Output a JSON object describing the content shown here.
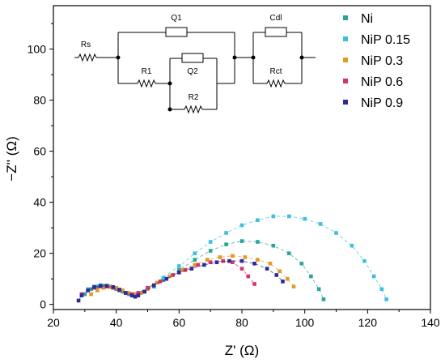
{
  "chart_data": {
    "type": "scatter",
    "title": "",
    "xlabel": "Z' (Ω)",
    "ylabel": "−Z'' (Ω)",
    "xlim": [
      20,
      140
    ],
    "ylim": [
      -2,
      117
    ],
    "xticks": [
      20,
      40,
      60,
      80,
      100,
      120,
      140
    ],
    "yticks": [
      0,
      20,
      40,
      60,
      80,
      100
    ],
    "grid": false,
    "legend_position": "top-right",
    "series": [
      {
        "name": "Ni",
        "color": "#2aa59a",
        "points": [
          [
            30,
            4
          ],
          [
            32,
            6
          ],
          [
            34,
            7
          ],
          [
            36,
            7.3
          ],
          [
            38,
            7
          ],
          [
            40,
            6
          ],
          [
            42,
            5
          ],
          [
            44,
            4
          ],
          [
            45.5,
            3.6
          ],
          [
            47,
            4
          ],
          [
            49,
            5
          ],
          [
            52,
            7
          ],
          [
            55,
            9.5
          ],
          [
            60,
            13.5
          ],
          [
            65,
            17.5
          ],
          [
            70,
            21
          ],
          [
            75,
            23.5
          ],
          [
            80,
            24.8
          ],
          [
            85,
            24.5
          ],
          [
            90,
            23
          ],
          [
            95,
            20
          ],
          [
            99,
            16
          ],
          [
            102,
            11
          ],
          [
            104.5,
            6
          ],
          [
            106,
            2
          ]
        ]
      },
      {
        "name": "NiP 0.15",
        "color": "#3cc0de",
        "points": [
          [
            29,
            4
          ],
          [
            31,
            6
          ],
          [
            33,
            7
          ],
          [
            35,
            7.5
          ],
          [
            37,
            7.3
          ],
          [
            39,
            6.5
          ],
          [
            41,
            5.5
          ],
          [
            43,
            4.5
          ],
          [
            45,
            4
          ],
          [
            47,
            4.5
          ],
          [
            50,
            6.5
          ],
          [
            55,
            10.5
          ],
          [
            60,
            15
          ],
          [
            65,
            20
          ],
          [
            70,
            24.5
          ],
          [
            75,
            28
          ],
          [
            80,
            31
          ],
          [
            85,
            33
          ],
          [
            90,
            34.5
          ],
          [
            95,
            34.5
          ],
          [
            100,
            33.5
          ],
          [
            105,
            31.5
          ],
          [
            110,
            28
          ],
          [
            115,
            23
          ],
          [
            119,
            17
          ],
          [
            122,
            11
          ],
          [
            124.5,
            6
          ],
          [
            126,
            2
          ]
        ]
      },
      {
        "name": "NiP 0.3",
        "color": "#e09a25",
        "points": [
          [
            32,
            4
          ],
          [
            34,
            5.5
          ],
          [
            36,
            6.5
          ],
          [
            38,
            6.8
          ],
          [
            40,
            6.5
          ],
          [
            42,
            5.5
          ],
          [
            44,
            4.5
          ],
          [
            46,
            4
          ],
          [
            48,
            4.5
          ],
          [
            50,
            6
          ],
          [
            53,
            8.5
          ],
          [
            57,
            11
          ],
          [
            61,
            13.5
          ],
          [
            65,
            15.5
          ],
          [
            69,
            17.5
          ],
          [
            73,
            18.5
          ],
          [
            77,
            19
          ],
          [
            81,
            18.5
          ],
          [
            85,
            17.5
          ],
          [
            89,
            16
          ],
          [
            92,
            13
          ],
          [
            94.5,
            10
          ],
          [
            96.5,
            7
          ]
        ]
      },
      {
        "name": "NiP 0.6",
        "color": "#d6336a",
        "points": [
          [
            29,
            4
          ],
          [
            31,
            5.5
          ],
          [
            33,
            6.5
          ],
          [
            35,
            7
          ],
          [
            37,
            7
          ],
          [
            39,
            6.5
          ],
          [
            41,
            5.5
          ],
          [
            43,
            4.5
          ],
          [
            45,
            4
          ],
          [
            47,
            4.5
          ],
          [
            50,
            6.5
          ],
          [
            54,
            9
          ],
          [
            58,
            11.5
          ],
          [
            62,
            13.5
          ],
          [
            66,
            15.5
          ],
          [
            70,
            16.5
          ],
          [
            74,
            17
          ],
          [
            77,
            16.5
          ],
          [
            80,
            14
          ],
          [
            82,
            11
          ],
          [
            84,
            8
          ]
        ]
      },
      {
        "name": "NiP 0.9",
        "color": "#2b2b9a",
        "points": [
          [
            28,
            1.5
          ],
          [
            29,
            3.5
          ],
          [
            31,
            5.5
          ],
          [
            33,
            6.8
          ],
          [
            35,
            7.3
          ],
          [
            37,
            7.3
          ],
          [
            39,
            6.8
          ],
          [
            41,
            5.8
          ],
          [
            43,
            4.5
          ],
          [
            45,
            3.5
          ],
          [
            46,
            3
          ],
          [
            47,
            3.5
          ],
          [
            49,
            5
          ],
          [
            52,
            7.5
          ],
          [
            56,
            10
          ],
          [
            60,
            12.5
          ],
          [
            64,
            14
          ],
          [
            68,
            15.5
          ],
          [
            72,
            16.5
          ],
          [
            76,
            17
          ],
          [
            80,
            17
          ],
          [
            84,
            16
          ],
          [
            88,
            14
          ],
          [
            91,
            11.5
          ],
          [
            93,
            9
          ]
        ]
      }
    ]
  },
  "circuit": {
    "labels": {
      "rs": "Rs",
      "q1": "Q1",
      "r1": "R1",
      "q2": "Q2",
      "r2": "R2",
      "cdl": "Cdl",
      "rct": "Rct"
    }
  }
}
